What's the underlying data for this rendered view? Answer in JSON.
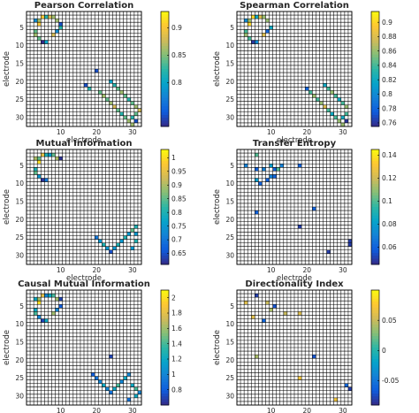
{
  "figure": {
    "background": "#ffffff",
    "empty_cell_color": "#ffffff",
    "grid_color": "#000000"
  },
  "colormap": {
    "name": "parula",
    "stops": [
      "#352a87",
      "#0f5cdd",
      "#1481d6",
      "#06a4ca",
      "#2eb7a4",
      "#87bf77",
      "#d1bb59",
      "#fec832",
      "#f9fb0e"
    ]
  },
  "chart_data": [
    {
      "type": "heatmap",
      "title": "Pearson Correlation",
      "xlabel": "electrode",
      "ylabel": "electrode",
      "n": 32,
      "xticks": [
        10,
        20,
        30
      ],
      "yticks": [
        5,
        10,
        15,
        20,
        25,
        30
      ],
      "clim": [
        0.72,
        0.93
      ],
      "cbar_ticks": [
        0.8,
        0.85,
        0.9
      ],
      "cells": [
        [
          3,
          3,
          0.78
        ],
        [
          4,
          3,
          0.86
        ],
        [
          4,
          4,
          0.9
        ],
        [
          5,
          2,
          0.9
        ],
        [
          6,
          2,
          0.82
        ],
        [
          7,
          2,
          0.88
        ],
        [
          8,
          2,
          0.86
        ],
        [
          9,
          3,
          0.86
        ],
        [
          10,
          4,
          0.74
        ],
        [
          3,
          6,
          0.84
        ],
        [
          3,
          7,
          0.86
        ],
        [
          4,
          8,
          0.84
        ],
        [
          5,
          9,
          0.72
        ],
        [
          6,
          9,
          0.8
        ],
        [
          8,
          7,
          0.88
        ],
        [
          9,
          6,
          0.78
        ],
        [
          10,
          5,
          0.82
        ],
        [
          20,
          17,
          0.74
        ],
        [
          17,
          21,
          0.74
        ],
        [
          18,
          22,
          0.82
        ],
        [
          21,
          23,
          0.84
        ],
        [
          22,
          24,
          0.86
        ],
        [
          23,
          25,
          0.84
        ],
        [
          24,
          26,
          0.86
        ],
        [
          25,
          27,
          0.88
        ],
        [
          26,
          28,
          0.84
        ],
        [
          27,
          29,
          0.82
        ],
        [
          28,
          30,
          0.84
        ],
        [
          29,
          31,
          0.86
        ],
        [
          30,
          32,
          0.86
        ],
        [
          24,
          20,
          0.8
        ],
        [
          25,
          21,
          0.82
        ],
        [
          26,
          22,
          0.84
        ],
        [
          27,
          23,
          0.86
        ],
        [
          28,
          24,
          0.84
        ],
        [
          29,
          25,
          0.82
        ],
        [
          30,
          26,
          0.84
        ],
        [
          31,
          27,
          0.86
        ],
        [
          32,
          28,
          0.88
        ],
        [
          31,
          29,
          0.84
        ],
        [
          30,
          30,
          0.82
        ],
        [
          31,
          31,
          0.74
        ]
      ]
    },
    {
      "type": "heatmap",
      "title": "Spearman Correlation",
      "xlabel": "electrode",
      "ylabel": "electrode",
      "n": 32,
      "xticks": [
        10,
        20,
        30
      ],
      "yticks": [
        5,
        10,
        15,
        20,
        25,
        30
      ],
      "clim": [
        0.755,
        0.915
      ],
      "cbar_ticks": [
        0.76,
        0.78,
        0.8,
        0.82,
        0.84,
        0.86,
        0.88,
        0.9
      ],
      "cells": [
        [
          3,
          3,
          0.8
        ],
        [
          4,
          3,
          0.86
        ],
        [
          4,
          4,
          0.9
        ],
        [
          5,
          2,
          0.9
        ],
        [
          6,
          2,
          0.82
        ],
        [
          7,
          2,
          0.88
        ],
        [
          8,
          2,
          0.86
        ],
        [
          9,
          3,
          0.86
        ],
        [
          3,
          6,
          0.84
        ],
        [
          3,
          7,
          0.86
        ],
        [
          4,
          8,
          0.84
        ],
        [
          5,
          9,
          0.76
        ],
        [
          6,
          9,
          0.8
        ],
        [
          8,
          7,
          0.88
        ],
        [
          9,
          6,
          0.78
        ],
        [
          10,
          5,
          0.82
        ],
        [
          20,
          22,
          0.78
        ],
        [
          21,
          23,
          0.84
        ],
        [
          22,
          24,
          0.86
        ],
        [
          23,
          25,
          0.84
        ],
        [
          24,
          26,
          0.86
        ],
        [
          25,
          27,
          0.88
        ],
        [
          26,
          28,
          0.84
        ],
        [
          27,
          29,
          0.82
        ],
        [
          28,
          30,
          0.84
        ],
        [
          29,
          31,
          0.86
        ],
        [
          30,
          32,
          0.86
        ],
        [
          25,
          21,
          0.82
        ],
        [
          26,
          22,
          0.84
        ],
        [
          27,
          23,
          0.86
        ],
        [
          28,
          24,
          0.84
        ],
        [
          29,
          25,
          0.82
        ],
        [
          30,
          26,
          0.84
        ],
        [
          31,
          27,
          0.86
        ],
        [
          31,
          29,
          0.84
        ],
        [
          30,
          30,
          0.82
        ],
        [
          31,
          31,
          0.76
        ]
      ]
    },
    {
      "type": "heatmap",
      "title": "Mutual Information",
      "xlabel": "electrode",
      "ylabel": "electrode",
      "n": 32,
      "xticks": [
        10,
        20,
        30
      ],
      "yticks": [
        5,
        10,
        15,
        20,
        25,
        30
      ],
      "clim": [
        0.61,
        1.03
      ],
      "cbar_ticks": [
        0.65,
        0.7,
        0.75,
        0.8,
        0.85,
        0.9,
        0.95,
        1
      ],
      "cells": [
        [
          3,
          3,
          0.9
        ],
        [
          4,
          3,
          0.85
        ],
        [
          4,
          4,
          1.0
        ],
        [
          5,
          2,
          0.95
        ],
        [
          6,
          2,
          0.8
        ],
        [
          7,
          2,
          0.75
        ],
        [
          8,
          2,
          0.85
        ],
        [
          9,
          3,
          0.9
        ],
        [
          10,
          3,
          0.62
        ],
        [
          3,
          6,
          0.8
        ],
        [
          3,
          7,
          0.85
        ],
        [
          4,
          8,
          0.75
        ],
        [
          5,
          9,
          0.62
        ],
        [
          6,
          9,
          0.7
        ],
        [
          20,
          25,
          0.7
        ],
        [
          21,
          26,
          0.75
        ],
        [
          22,
          27,
          0.8
        ],
        [
          23,
          28,
          0.75
        ],
        [
          24,
          29,
          0.65
        ],
        [
          25,
          28,
          0.75
        ],
        [
          26,
          27,
          0.8
        ],
        [
          27,
          26,
          0.75
        ],
        [
          28,
          25,
          0.8
        ],
        [
          29,
          24,
          0.75
        ],
        [
          30,
          23,
          0.85
        ],
        [
          31,
          22,
          0.8
        ],
        [
          31,
          24,
          0.75
        ],
        [
          31,
          26,
          0.8
        ],
        [
          30,
          28,
          0.75
        ]
      ]
    },
    {
      "type": "heatmap",
      "title": "Transfer Entropy",
      "xlabel": "electrode",
      "ylabel": "electrode",
      "n": 32,
      "xticks": [
        10,
        20,
        30
      ],
      "yticks": [
        5,
        10,
        15,
        20,
        25,
        30
      ],
      "clim": [
        0.045,
        0.145
      ],
      "cbar_ticks": [
        0.06,
        0.08,
        0.1,
        0.12,
        0.14
      ],
      "cells": [
        [
          6,
          2,
          0.1
        ],
        [
          3,
          5,
          0.07
        ],
        [
          6,
          6,
          0.06
        ],
        [
          8,
          6,
          0.07
        ],
        [
          10,
          5,
          0.08
        ],
        [
          11,
          6,
          0.06
        ],
        [
          12,
          6,
          0.1
        ],
        [
          13,
          5,
          0.07
        ],
        [
          18,
          5,
          0.06
        ],
        [
          6,
          9,
          0.08
        ],
        [
          9,
          9,
          0.06
        ],
        [
          10,
          8,
          0.07
        ],
        [
          11,
          8,
          0.06
        ],
        [
          7,
          10,
          0.06
        ],
        [
          6,
          18,
          0.06
        ],
        [
          22,
          17,
          0.06
        ],
        [
          18,
          22,
          0.05
        ],
        [
          26,
          29,
          0.05
        ],
        [
          32,
          26,
          0.05
        ],
        [
          32,
          27,
          0.05
        ]
      ]
    },
    {
      "type": "heatmap",
      "title": "Causal Mutual Information",
      "xlabel": "electrode",
      "ylabel": "electrode",
      "n": 32,
      "xticks": [
        10,
        20,
        30
      ],
      "yticks": [
        5,
        10,
        15,
        20,
        25,
        30
      ],
      "clim": [
        0.6,
        2.1
      ],
      "cbar_ticks": [
        0.8,
        1,
        1.2,
        1.4,
        1.6,
        1.8,
        2
      ],
      "cells": [
        [
          3,
          3,
          1.2
        ],
        [
          4,
          3,
          1.6
        ],
        [
          4,
          4,
          2.0
        ],
        [
          5,
          2,
          1.8
        ],
        [
          6,
          2,
          1.0
        ],
        [
          7,
          2,
          1.2
        ],
        [
          8,
          2,
          1.4
        ],
        [
          9,
          3,
          1.6
        ],
        [
          10,
          3,
          0.7
        ],
        [
          3,
          6,
          1.2
        ],
        [
          3,
          7,
          1.4
        ],
        [
          4,
          8,
          1.0
        ],
        [
          5,
          9,
          0.7
        ],
        [
          6,
          9,
          1.2
        ],
        [
          8,
          7,
          1.6
        ],
        [
          9,
          6,
          1.0
        ],
        [
          10,
          5,
          0.8
        ],
        [
          24,
          19,
          0.7
        ],
        [
          19,
          24,
          0.8
        ],
        [
          20,
          25,
          0.9
        ],
        [
          21,
          26,
          1.0
        ],
        [
          22,
          27,
          1.2
        ],
        [
          23,
          28,
          1.0
        ],
        [
          24,
          29,
          0.9
        ],
        [
          25,
          28,
          1.2
        ],
        [
          26,
          27,
          1.4
        ],
        [
          27,
          26,
          1.0
        ],
        [
          28,
          25,
          1.2
        ],
        [
          29,
          24,
          1.0
        ],
        [
          30,
          27,
          1.2
        ],
        [
          31,
          28,
          1.4
        ],
        [
          32,
          29,
          1.0
        ],
        [
          31,
          30,
          1.2
        ],
        [
          29,
          31,
          0.9
        ]
      ]
    },
    {
      "type": "heatmap",
      "title": "Directionality Index",
      "xlabel": "electrode",
      "ylabel": "electrode",
      "n": 32,
      "xticks": [
        10,
        20,
        30
      ],
      "yticks": [
        5,
        10,
        15,
        20,
        25,
        30
      ],
      "clim": [
        -0.09,
        0.1
      ],
      "cbar_ticks": [
        -0.05,
        0,
        0.05
      ],
      "cells": [
        [
          6,
          2,
          -0.08
        ],
        [
          3,
          4,
          0.06
        ],
        [
          9,
          4,
          0.05
        ],
        [
          10,
          6,
          0.04
        ],
        [
          11,
          5,
          -0.07
        ],
        [
          18,
          7,
          0.06
        ],
        [
          14,
          7,
          0.05
        ],
        [
          5,
          8,
          0.06
        ],
        [
          8,
          9,
          -0.06
        ],
        [
          6,
          19,
          0.04
        ],
        [
          22,
          19,
          -0.07
        ],
        [
          18,
          25,
          0.07
        ],
        [
          28,
          31,
          0.07
        ],
        [
          32,
          28,
          -0.08
        ],
        [
          31,
          27,
          -0.06
        ]
      ]
    }
  ]
}
